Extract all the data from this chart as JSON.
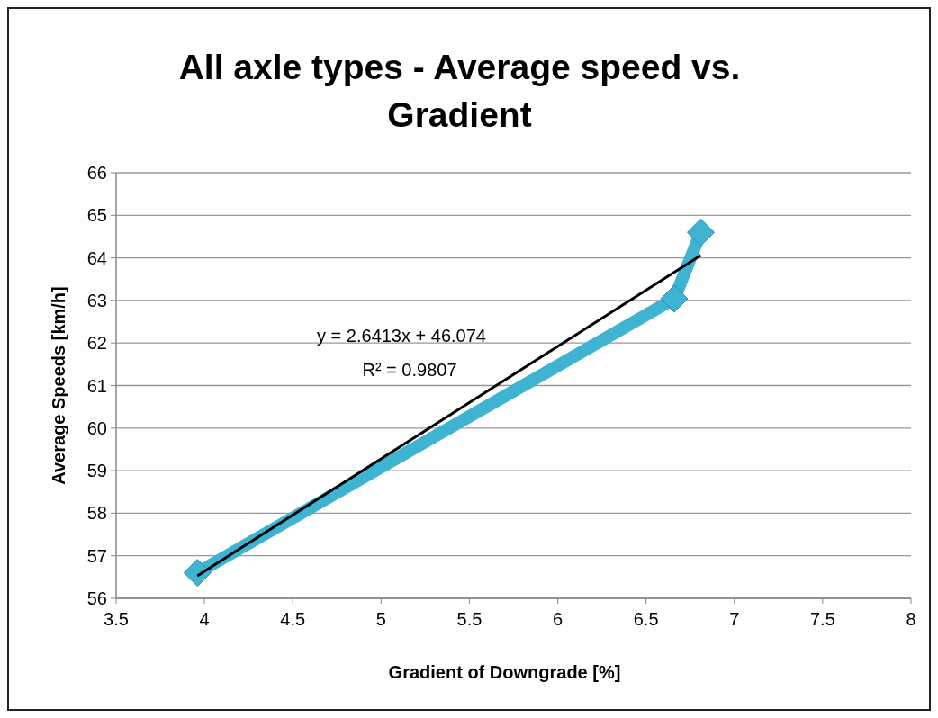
{
  "chart_data": {
    "type": "line",
    "title": "All axle types - Average speed vs. Gradient",
    "xlabel": "Gradient of Downgrade [%]",
    "ylabel": "Average Speeds [km/h]",
    "x": [
      3.96,
      6.66,
      6.81
    ],
    "series": [
      {
        "color": "#3fb3d2",
        "values": [
          56.6,
          63.04,
          64.6
        ],
        "marker": "diamond"
      },
      {
        "type": "line",
        "color": "#000000",
        "x": [
          3.96,
          6.81
        ],
        "values": [
          56.53,
          64.06
        ],
        "marker": "none"
      }
    ],
    "xlim": [
      3.5,
      8
    ],
    "xticks": [
      3.5,
      4,
      4.5,
      5,
      5.5,
      6,
      6.5,
      7,
      7.5,
      8
    ],
    "ylim": [
      56,
      66
    ],
    "yticks": [
      56,
      57,
      58,
      59,
      60,
      61,
      62,
      63,
      64,
      65,
      66
    ],
    "grid": "y",
    "annotations": [
      "y = 2.6413x + 46.074",
      "R² = 0.9807"
    ]
  }
}
